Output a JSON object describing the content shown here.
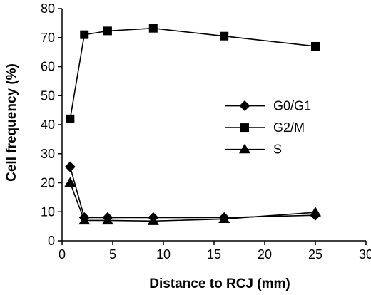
{
  "chart_data": {
    "type": "line",
    "title": "",
    "xlabel": "Distance to RCJ (mm)",
    "ylabel": "Cell frequency (%)",
    "xlim": [
      0,
      30
    ],
    "ylim": [
      0,
      80
    ],
    "xticks": [
      0,
      5,
      10,
      15,
      20,
      25,
      30
    ],
    "yticks": [
      0,
      10,
      20,
      30,
      40,
      50,
      60,
      70,
      80
    ],
    "grid": false,
    "legend_position": "right",
    "x": [
      0.8,
      2.2,
      4.5,
      9,
      16,
      25
    ],
    "series": [
      {
        "name": "G0/G1",
        "marker": "diamond",
        "values": [
          25.5,
          8,
          8,
          8,
          8,
          8.8
        ]
      },
      {
        "name": "G2/M",
        "marker": "square",
        "values": [
          42,
          71,
          72.3,
          73.2,
          70.5,
          67
        ]
      },
      {
        "name": "S",
        "marker": "triangle",
        "values": [
          20,
          7,
          7,
          6.8,
          7.5,
          9.8
        ]
      }
    ],
    "colors": {
      "line": "#000000",
      "marker": "#000000"
    }
  }
}
